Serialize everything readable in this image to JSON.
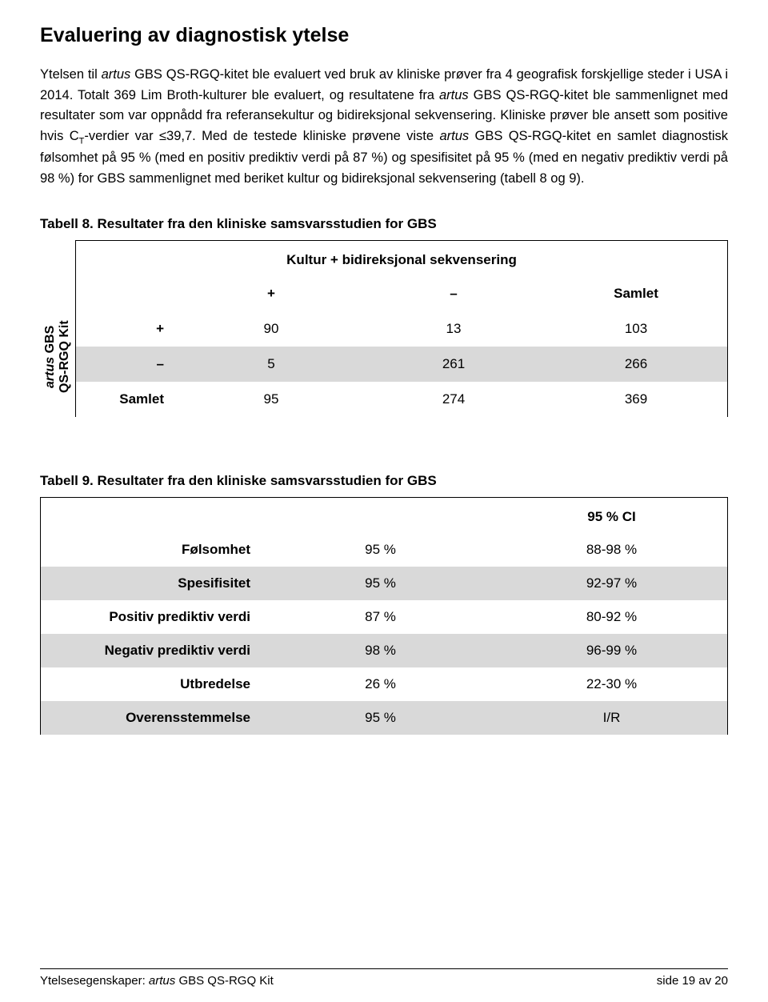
{
  "heading": "Evaluering av diagnostisk ytelse",
  "body": {
    "p1a": "Ytelsen til ",
    "p1b": "artus",
    "p1c": " GBS QS-RGQ-kitet ble evaluert ved bruk av kliniske prøver fra 4 geografisk forskjellige steder i USA i 2014. Totalt 369 Lim Broth-kulturer ble evaluert, og resultatene fra ",
    "p1d": "artus",
    "p1e": " GBS QS-RGQ-kitet ble sammenlignet med resultater som var oppnådd fra referansekultur og bidireksjonal sekvensering. Kliniske prøver ble ansett som positive hvis C",
    "p1f": "T",
    "p1g": "-verdier var ≤39,7. Med de testede kliniske prøvene viste ",
    "p1h": "artus",
    "p1i": " GBS QS-RGQ-kitet en samlet diagnostisk følsomhet på 95 % (med en positiv prediktiv verdi på 87 %) og spesifisitet på 95 % (med en negativ prediktiv verdi på 98 %) for GBS sammenlignet med beriket kultur og bidireksjonal sekvensering (tabell 8 og 9)."
  },
  "table8": {
    "caption": "Tabell 8. Resultater fra den kliniske samsvarsstudien for GBS",
    "top_title": "Kultur + bidireksjonal sekvensering",
    "side_label_1": "artus",
    "side_label_2": " GBS",
    "side_label_3": "QS-RGQ Kit",
    "col_headers": [
      "+",
      "–",
      "Samlet"
    ],
    "rows": [
      {
        "label": "+",
        "cells": [
          "90",
          "13",
          "103"
        ],
        "shade": false
      },
      {
        "label": "–",
        "cells": [
          "5",
          "261",
          "266"
        ],
        "shade": true
      },
      {
        "label": "Samlet",
        "cells": [
          "95",
          "274",
          "369"
        ],
        "shade": false
      }
    ],
    "colors": {
      "shade": "#d9d9d9",
      "border": "#000000"
    }
  },
  "table9": {
    "caption": "Tabell 9. Resultater fra den kliniske samsvarsstudien for GBS",
    "header_ci": "95 % CI",
    "rows": [
      {
        "label": "Følsomhet",
        "val": "95 %",
        "ci": "88-98 %",
        "shade": false
      },
      {
        "label": "Spesifisitet",
        "val": "95 %",
        "ci": "92-97 %",
        "shade": true
      },
      {
        "label": "Positiv prediktiv verdi",
        "val": "87 %",
        "ci": "80-92 %",
        "shade": false
      },
      {
        "label": "Negativ prediktiv verdi",
        "val": "98 %",
        "ci": "96-99 %",
        "shade": true
      },
      {
        "label": "Utbredelse",
        "val": "26 %",
        "ci": "22-30 %",
        "shade": false
      },
      {
        "label": "Overensstemmelse",
        "val": "95 %",
        "ci": "I/R",
        "shade": true
      }
    ]
  },
  "footer": {
    "left_a": "Ytelsesegenskaper: ",
    "left_b": "artus",
    "left_c": " GBS QS-RGQ Kit",
    "right": "side 19 av 20"
  }
}
